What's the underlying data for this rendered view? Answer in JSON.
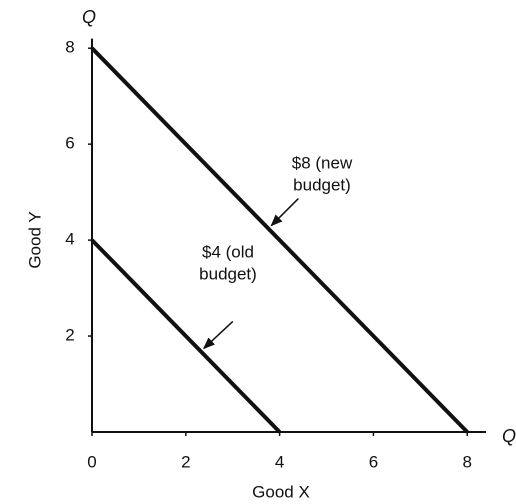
{
  "chart_data": {
    "type": "line",
    "x_axis_label": "Good X",
    "y_axis_label": "Good Y",
    "x_axis_end_label": "Q",
    "y_axis_end_label": "Q",
    "xlim": [
      0,
      8.4
    ],
    "ylim": [
      0,
      8.2
    ],
    "xticks": [
      0,
      2,
      4,
      6,
      8
    ],
    "yticks": [
      2,
      4,
      6,
      8
    ],
    "series": [
      {
        "label_lines": [
          "$8 (new",
          "budget)"
        ],
        "color": "#111111",
        "x": [
          0,
          8
        ],
        "values": [
          8,
          0
        ]
      },
      {
        "label_lines": [
          "$4 (old",
          "budget)"
        ],
        "color": "#111111",
        "x": [
          0,
          4
        ],
        "values": [
          4,
          0
        ]
      }
    ]
  }
}
